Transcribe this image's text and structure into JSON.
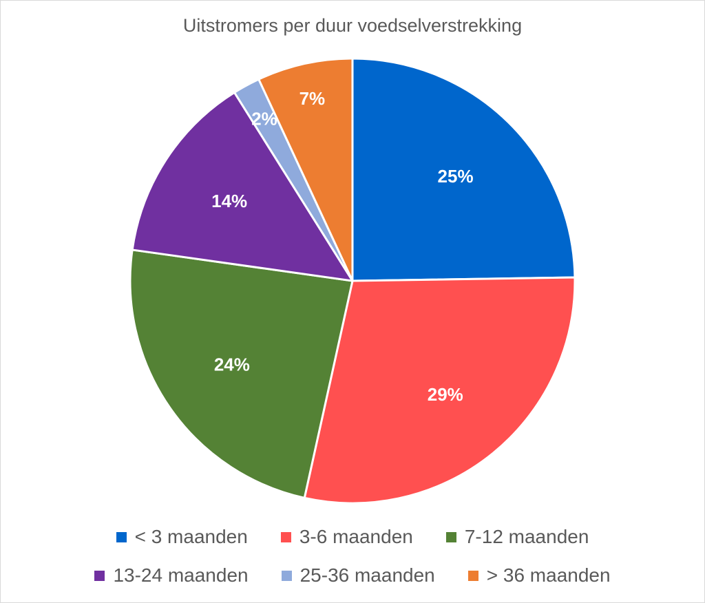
{
  "chart_data": {
    "type": "pie",
    "title": "Uitstromers per duur voedselverstrekking",
    "slices": [
      {
        "label": "< 3 maanden",
        "value": 25,
        "display": "25%",
        "color": "#0066cc"
      },
      {
        "label": "3-6 maanden",
        "value": 29,
        "display": "29%",
        "color": "#ff5050"
      },
      {
        "label": "7-12 maanden",
        "value": 24,
        "display": "24%",
        "color": "#548235"
      },
      {
        "label": "13-24 maanden",
        "value": 14,
        "display": "14%",
        "color": "#7030a0"
      },
      {
        "label": "25-36 maanden",
        "value": 2,
        "display": "2%",
        "color": "#8faadc"
      },
      {
        "label": "> 36 maanden",
        "value": 7,
        "display": "7%",
        "color": "#ed7d31"
      }
    ],
    "legend_position": "bottom"
  }
}
